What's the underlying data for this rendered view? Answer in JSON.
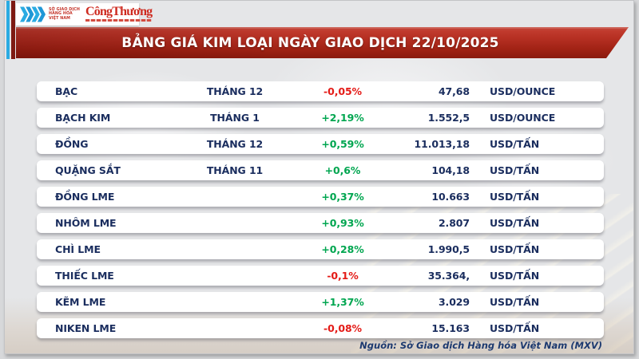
{
  "header": {
    "mxv_logo": {
      "line1": "SỞ GIAO DỊCH",
      "line2": "HÀNG HÓA",
      "line3": "VIỆT NAM"
    },
    "congthuong_logo": "CôngThương",
    "banner_title": "BẢNG GIÁ KIM LOẠI NGÀY GIAO DỊCH 22/10/2025"
  },
  "table": {
    "rows": [
      {
        "name": "BẠC",
        "month": "THÁNG 12",
        "change": "-0,05%",
        "direction": "down",
        "price": "47,68",
        "unit": "USD/OUNCE"
      },
      {
        "name": "BẠCH KIM",
        "month": "THÁNG 1",
        "change": "+2,19%",
        "direction": "up",
        "price": "1.552,5",
        "unit": "USD/OUNCE"
      },
      {
        "name": "ĐỒNG",
        "month": "THÁNG 12",
        "change": "+0,59%",
        "direction": "up",
        "price": "11.013,18",
        "unit": "USD/TẤN"
      },
      {
        "name": "QUẶNG SẮT",
        "month": "THÁNG 11",
        "change": "+0,6%",
        "direction": "up",
        "price": "104,18",
        "unit": "USD/TẤN"
      },
      {
        "name": "ĐỒNG LME",
        "month": "",
        "change": "+0,37%",
        "direction": "up",
        "price": "10.663",
        "unit": "USD/TẤN"
      },
      {
        "name": "NHÔM LME",
        "month": "",
        "change": "+0,93%",
        "direction": "up",
        "price": "2.807",
        "unit": "USD/TẤN"
      },
      {
        "name": "CHÌ LME",
        "month": "",
        "change": "+0,28%",
        "direction": "up",
        "price": "1.990,5",
        "unit": "USD/TẤN"
      },
      {
        "name": "THIẾC LME",
        "month": "",
        "change": "-0,1%",
        "direction": "down",
        "price": "35.364,",
        "unit": "USD/TẤN"
      },
      {
        "name": "KẼM LME",
        "month": "",
        "change": "+1,37%",
        "direction": "up",
        "price": "3.029",
        "unit": "USD/TẤN"
      },
      {
        "name": "NIKEN LME",
        "month": "",
        "change": "-0,08%",
        "direction": "down",
        "price": "15.163",
        "unit": "USD/TẤN"
      }
    ]
  },
  "footer": {
    "source": "Nguồn: Sở Giao dịch Hàng hóa Việt Nam (MXV)"
  },
  "chart_data": {
    "type": "table",
    "title": "BẢNG GIÁ KIM LOẠI NGÀY GIAO DỊCH 22/10/2025",
    "date": "22/10/2025",
    "rows": [
      {
        "commodity": "BẠC",
        "contract_month": "THÁNG 12",
        "change_pct": -0.05,
        "price": 47.68,
        "unit": "USD/OUNCE"
      },
      {
        "commodity": "BẠCH KIM",
        "contract_month": "THÁNG 1",
        "change_pct": 2.19,
        "price": 1552.5,
        "unit": "USD/OUNCE"
      },
      {
        "commodity": "ĐỒNG",
        "contract_month": "THÁNG 12",
        "change_pct": 0.59,
        "price": 11013.18,
        "unit": "USD/TẤN"
      },
      {
        "commodity": "QUẶNG SẮT",
        "contract_month": "THÁNG 11",
        "change_pct": 0.6,
        "price": 104.18,
        "unit": "USD/TẤN"
      },
      {
        "commodity": "ĐỒNG LME",
        "contract_month": "",
        "change_pct": 0.37,
        "price": 10663,
        "unit": "USD/TẤN"
      },
      {
        "commodity": "NHÔM LME",
        "contract_month": "",
        "change_pct": 0.93,
        "price": 2807,
        "unit": "USD/TẤN"
      },
      {
        "commodity": "CHÌ LME",
        "contract_month": "",
        "change_pct": 0.28,
        "price": 1990.5,
        "unit": "USD/TẤN"
      },
      {
        "commodity": "THIẾC LME",
        "contract_month": "",
        "change_pct": -0.1,
        "price": 35364,
        "unit": "USD/TẤN"
      },
      {
        "commodity": "KẼM LME",
        "contract_month": "",
        "change_pct": 1.37,
        "price": 3029,
        "unit": "USD/TẤN"
      },
      {
        "commodity": "NIKEN LME",
        "contract_month": "",
        "change_pct": -0.08,
        "price": 15163,
        "unit": "USD/TẤN"
      }
    ],
    "colors": {
      "up": "#00a650",
      "down": "#e41b17",
      "text": "#1a2d5e",
      "banner": "#b22d20"
    }
  }
}
